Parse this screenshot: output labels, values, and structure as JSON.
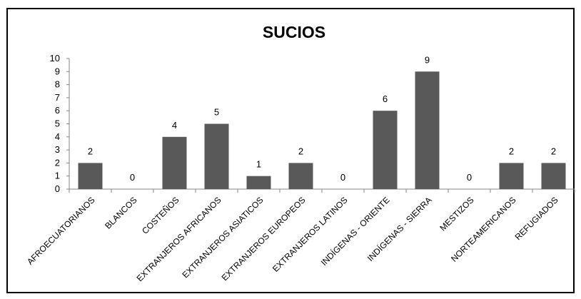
{
  "chart_data": {
    "type": "bar",
    "title": "SUCIOS",
    "xlabel": "",
    "ylabel": "",
    "ylim": [
      0,
      10
    ],
    "yticks": [
      "0",
      "1",
      "2",
      "3",
      "4",
      "5",
      "6",
      "7",
      "8",
      "9",
      "10"
    ],
    "categories": [
      "AFROECUATORIANOS",
      "BLANCOS",
      "COSTEÑOS",
      "EXTRANJEROS AFRICANOS",
      "EXTRANJEROS ASIATICOS",
      "EXTRANJEROS EUROPEOS",
      "EXTRANJEROS LATINOS",
      "INDÍGENAS - ORIENTE",
      "INDÍGENAS - SIERRA",
      "MESTIZOS",
      "NORTEAMERICANOS",
      "REFUGIADOS"
    ],
    "values": [
      2,
      0,
      4,
      5,
      1,
      2,
      0,
      6,
      9,
      0,
      2,
      2
    ],
    "bar_color": "#595959",
    "grid": false,
    "legend": "none"
  }
}
